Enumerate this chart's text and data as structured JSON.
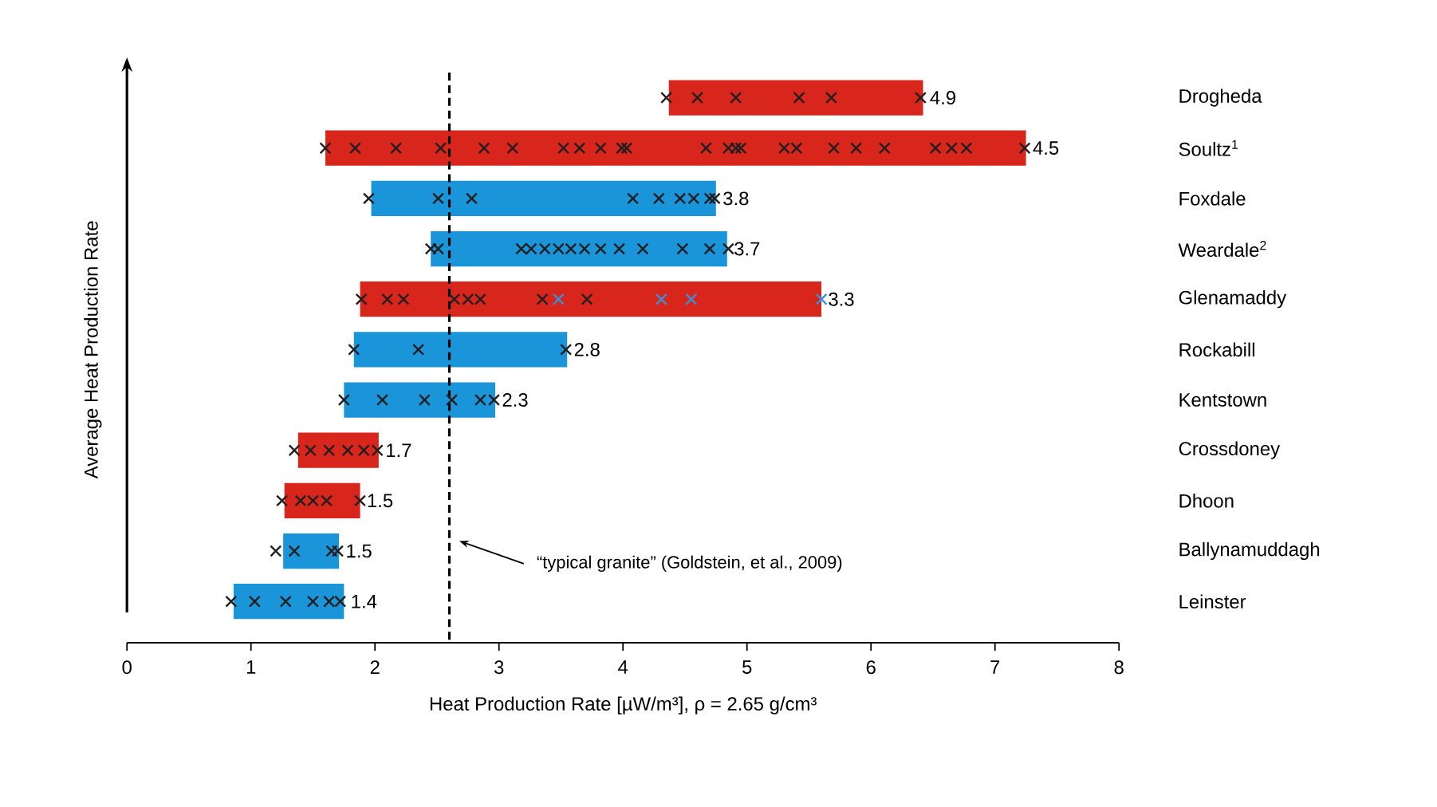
{
  "chart_data": {
    "type": "bar",
    "orientation": "horizontal",
    "xlabel": "Heat Production Rate [µW/m³], ρ = 2.65 g/cm³",
    "ylabel": "Average Heat Production Rate",
    "categories": [
      "Drogheda",
      "Soultz$^{1}$",
      "Foxdale",
      "Weardale$^{2}$",
      "Glenamaddy",
      "Rockabill",
      "Kentstown",
      "Crossdoney",
      "Dhoon",
      "Ballynamuddagh",
      "Leinster"
    ],
    "xlim": [
      0,
      8
    ],
    "xticks": [
      0,
      1,
      2,
      3,
      4,
      5,
      6,
      7,
      8
    ],
    "grid": false,
    "series": [
      {
        "base": [
          4.37,
          1.6,
          1.97,
          2.45,
          1.88,
          1.83,
          1.75,
          1.38,
          1.27,
          1.26,
          0.86
        ],
        "values": [
          2.05,
          5.65,
          2.78,
          2.39,
          3.72,
          1.72,
          1.22,
          0.65,
          0.61,
          0.45,
          0.89
        ],
        "colors": [
          "#d9261c",
          "#d9261c",
          "#1b95d9",
          "#1b95d9",
          "#d9261c",
          "#1b95d9",
          "#1b95d9",
          "#d9261c",
          "#d9261c",
          "#1b95d9",
          "#1b95d9"
        ]
      },
      {
        "type": "scatter",
        "marker": "cross",
        "color": "#231f20",
        "x": [
          "Drogheda",
          "Drogheda",
          "Drogheda",
          "Drogheda",
          "Drogheda",
          "Drogheda",
          "Soultz$^{1}$",
          "Soultz$^{1}$",
          "Soultz$^{1}$",
          "Soultz$^{1}$",
          "Soultz$^{1}$",
          "Soultz$^{1}$",
          "Soultz$^{1}$",
          "Soultz$^{1}$",
          "Soultz$^{1}$",
          "Soultz$^{1}$",
          "Soultz$^{1}$",
          "Soultz$^{1}$",
          "Soultz$^{1}$",
          "Soultz$^{1}$",
          "Soultz$^{1}$",
          "Soultz$^{1}$",
          "Soultz$^{1}$",
          "Soultz$^{1}$",
          "Soultz$^{1}$",
          "Soultz$^{1}$",
          "Soultz$^{1}$",
          "Soultz$^{1}$",
          "Soultz$^{1}$",
          "Soultz$^{1}$",
          "Foxdale",
          "Foxdale",
          "Foxdale",
          "Foxdale",
          "Foxdale",
          "Foxdale",
          "Foxdale",
          "Foxdale",
          "Foxdale",
          "Weardale$^{2}$",
          "Weardale$^{2}$",
          "Weardale$^{2}$",
          "Weardale$^{2}$",
          "Weardale$^{2}$",
          "Weardale$^{2}$",
          "Weardale$^{2}$",
          "Weardale$^{2}$",
          "Weardale$^{2}$",
          "Weardale$^{2}$",
          "Weardale$^{2}$",
          "Weardale$^{2}$",
          "Weardale$^{2}$",
          "Weardale$^{2}$",
          "Glenamaddy",
          "Glenamaddy",
          "Glenamaddy",
          "Glenamaddy",
          "Glenamaddy",
          "Glenamaddy",
          "Glenamaddy",
          "Glenamaddy",
          "Rockabill",
          "Rockabill",
          "Rockabill",
          "Kentstown",
          "Kentstown",
          "Kentstown",
          "Kentstown",
          "Kentstown",
          "Kentstown",
          "Crossdoney",
          "Crossdoney",
          "Crossdoney",
          "Crossdoney",
          "Crossdoney",
          "Crossdoney",
          "Dhoon",
          "Dhoon",
          "Dhoon",
          "Dhoon",
          "Dhoon",
          "Ballynamuddagh",
          "Ballynamuddagh",
          "Ballynamuddagh",
          "Ballynamuddagh",
          "Leinster",
          "Leinster",
          "Leinster",
          "Leinster",
          "Leinster",
          "Leinster"
        ],
        "values": [
          4.35,
          4.6,
          4.91,
          5.42,
          5.68,
          6.4,
          1.6,
          1.84,
          2.17,
          2.53,
          2.88,
          3.11,
          3.52,
          3.65,
          3.82,
          3.99,
          4.03,
          4.67,
          4.85,
          4.91,
          4.95,
          5.3,
          5.4,
          5.7,
          5.88,
          6.11,
          6.52,
          6.65,
          6.77,
          7.24,
          1.95,
          2.51,
          2.78,
          4.08,
          4.29,
          4.46,
          4.57,
          4.7,
          4.74,
          2.45,
          2.51,
          3.18,
          3.26,
          3.37,
          3.48,
          3.58,
          3.69,
          3.82,
          3.97,
          4.16,
          4.48,
          4.7,
          4.85,
          1.89,
          2.1,
          2.23,
          2.64,
          2.75,
          2.85,
          3.35,
          3.71,
          1.83,
          2.35,
          3.54,
          1.75,
          2.06,
          2.4,
          2.62,
          2.85,
          2.96,
          1.35,
          1.48,
          1.63,
          1.78,
          1.91,
          2.02,
          1.25,
          1.4,
          1.5,
          1.61,
          1.88,
          1.2,
          1.35,
          1.65,
          1.7,
          0.84,
          1.03,
          1.28,
          1.5,
          1.63,
          1.72
        ]
      },
      {
        "type": "scatter",
        "marker": "cross",
        "color": "#3d8fd1",
        "x": [
          "Glenamaddy",
          "Glenamaddy",
          "Glenamaddy",
          "Glenamaddy"
        ],
        "values": [
          3.48,
          4.31,
          4.55,
          5.6
        ]
      }
    ],
    "ref_lines": [
      {
        "axis": "x",
        "value": 2.6,
        "label": "“typical granite” (Goldstein, et al., 2009)",
        "color": "#000000",
        "line_style": "dashed"
      }
    ],
    "annotations": [
      {
        "text": "4.9",
        "x": 6.42,
        "y": "Drogheda"
      },
      {
        "text": "4.5",
        "x": 7.25,
        "y": "Soultz$^{1}$"
      },
      {
        "text": "3.8",
        "x": 4.75,
        "y": "Foxdale"
      },
      {
        "text": "3.7",
        "x": 4.84,
        "y": "Weardale$^{2}$"
      },
      {
        "text": "3.3",
        "x": 5.6,
        "y": "Glenamaddy"
      },
      {
        "text": "2.8",
        "x": 3.55,
        "y": "Rockabill"
      },
      {
        "text": "2.3",
        "x": 2.97,
        "y": "Kentstown"
      },
      {
        "text": "1.7",
        "x": 2.03,
        "y": "Crossdoney"
      },
      {
        "text": "1.5",
        "x": 1.88,
        "y": "Dhoon"
      },
      {
        "text": "1.5",
        "x": 1.71,
        "y": "Ballynamuddagh"
      },
      {
        "text": "1.4",
        "x": 1.75,
        "y": "Leinster"
      }
    ]
  }
}
